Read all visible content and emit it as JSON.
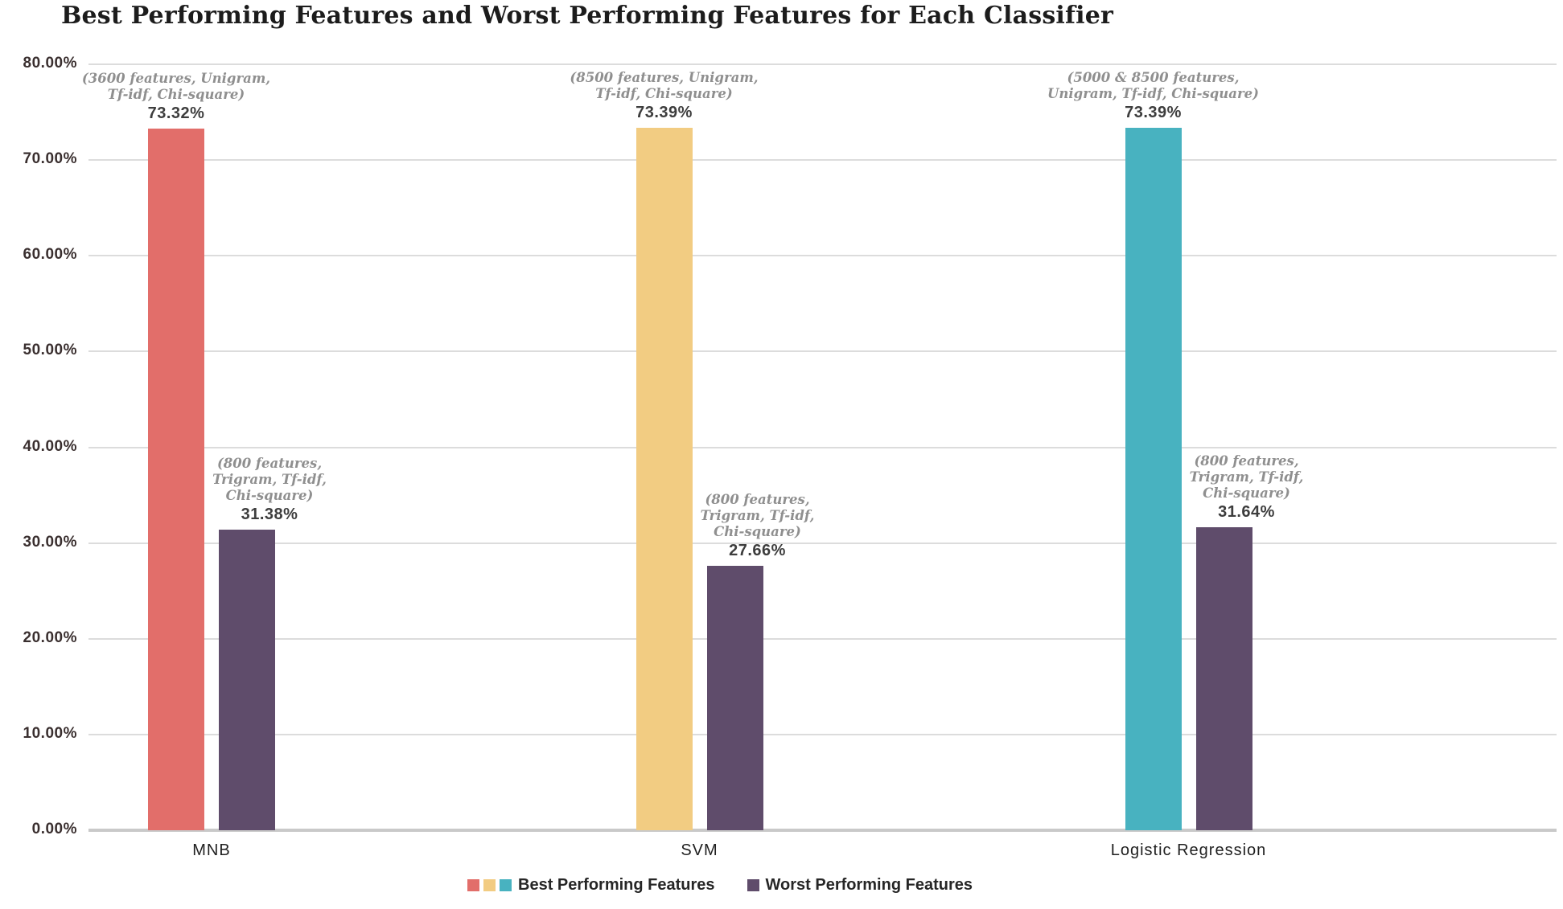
{
  "title": "Best Performing Features and Worst Performing Features for Each Classifier",
  "chart_data": {
    "type": "bar",
    "categories": [
      "MNB",
      "SVM",
      "Logistic Regression"
    ],
    "series": [
      {
        "name": "Best Performing Features",
        "values": [
          73.32,
          73.39,
          73.39
        ],
        "value_labels": [
          "73.32%",
          "73.39%",
          "73.39%"
        ],
        "colors": [
          "#E26E6A",
          "#F2CC82",
          "#48B2C0"
        ],
        "annotations": [
          [
            "(3600 features, Unigram,",
            "Tf-idf, Chi-square)"
          ],
          [
            "(8500 features, Unigram,",
            "Tf-idf, Chi-square)"
          ],
          [
            "(5000 & 8500 features,",
            "Unigram, Tf-idf, Chi-square)"
          ]
        ]
      },
      {
        "name": "Worst Performing Features",
        "values": [
          31.38,
          27.66,
          31.64
        ],
        "value_labels": [
          "31.38%",
          "27.66%",
          "31.64%"
        ],
        "colors": [
          "#5F4C6B",
          "#5F4C6B",
          "#5F4C6B"
        ],
        "annotations": [
          [
            "(800 features,",
            "Trigram, Tf-idf,",
            "Chi-square)"
          ],
          [
            "(800 features,",
            "Trigram, Tf-idf,",
            "Chi-square)"
          ],
          [
            "(800 features,",
            "Trigram, Tf-idf,",
            "Chi-square)"
          ]
        ]
      }
    ],
    "ylim": [
      0,
      80
    ],
    "yticks": [
      "0.00%",
      "10.00%",
      "20.00%",
      "30.00%",
      "40.00%",
      "50.00%",
      "60.00%",
      "70.00%",
      "80.00%"
    ],
    "grid": true,
    "legend_position": "bottom"
  },
  "legend": {
    "best_label": "Best Performing Features",
    "best_swatches": [
      "#E26E6A",
      "#F2CC82",
      "#48B2C0"
    ],
    "worst_label": "Worst Performing Features",
    "worst_swatch": "#5F4C6B"
  }
}
